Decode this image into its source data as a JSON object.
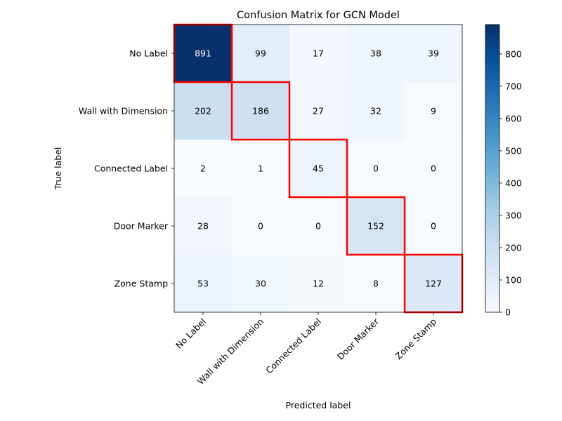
{
  "chart_data": {
    "type": "heatmap",
    "title": "Confusion Matrix for GCN Model",
    "xlabel": "Predicted label",
    "ylabel": "True label",
    "x_categories": [
      "No Label",
      "Wall with Dimension",
      "Connected Label",
      "Door Marker",
      "Zone Stamp"
    ],
    "y_categories": [
      "No Label",
      "Wall with Dimension",
      "Connected Label",
      "Door Marker",
      "Zone Stamp"
    ],
    "matrix": [
      [
        891,
        99,
        17,
        38,
        39
      ],
      [
        202,
        186,
        27,
        32,
        9
      ],
      [
        2,
        1,
        45,
        0,
        0
      ],
      [
        28,
        0,
        0,
        152,
        0
      ],
      [
        53,
        30,
        12,
        8,
        127
      ]
    ],
    "colormap": "Blues",
    "colorbar": {
      "range": [
        0,
        891
      ],
      "ticks": [
        0,
        100,
        200,
        300,
        400,
        500,
        600,
        700,
        800
      ]
    },
    "highlight_diagonal": true,
    "highlight_color": "#ff0000",
    "grid": false,
    "legend": "colorbar-right"
  }
}
